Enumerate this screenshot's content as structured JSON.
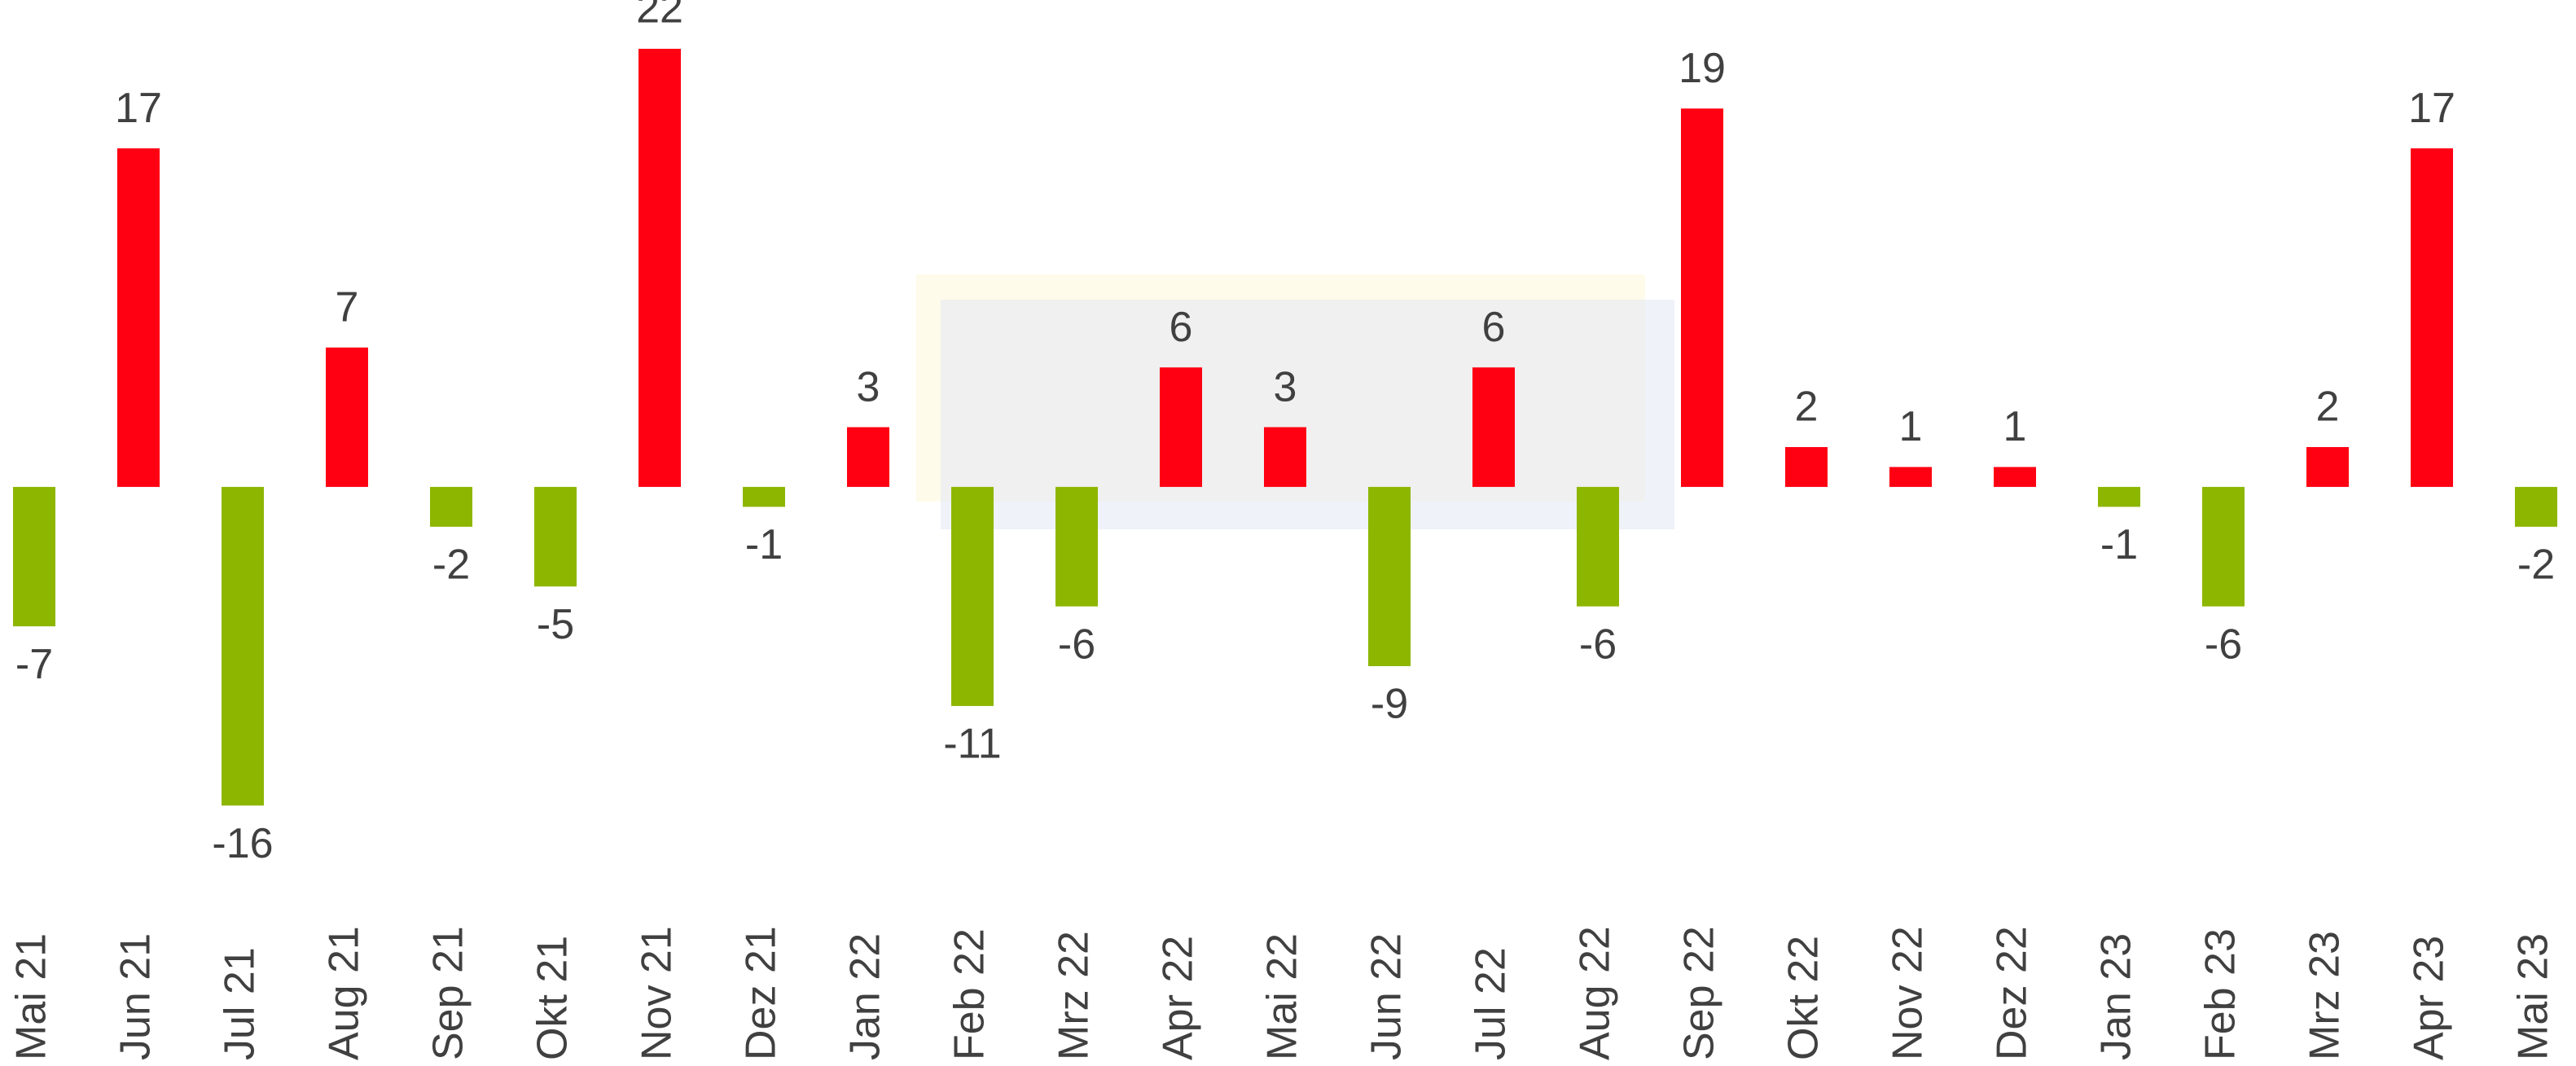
{
  "chart_data": {
    "type": "bar",
    "categories": [
      "Mai 21",
      "Jun 21",
      "Jul 21",
      "Aug 21",
      "Sep 21",
      "Okt 21",
      "Nov 21",
      "Dez 21",
      "Jan 22",
      "Feb 22",
      "Mrz 22",
      "Apr 22",
      "Mai 22",
      "Jun 22",
      "Jul 22",
      "Aug 22",
      "Sep 22",
      "Okt 22",
      "Nov 22",
      "Dez 22",
      "Jan 23",
      "Feb 23",
      "Mrz 23",
      "Apr 23",
      "Mai 23"
    ],
    "values": [
      -7,
      17,
      -16,
      7,
      -2,
      -5,
      22,
      -1,
      3,
      -11,
      -6,
      6,
      3,
      -9,
      6,
      -6,
      19,
      2,
      1,
      1,
      -1,
      -6,
      2,
      17,
      -2
    ],
    "positive_color": "#ff0012",
    "negative_color": "#8db600",
    "ylim": [
      -20,
      24
    ],
    "grid": false
  }
}
